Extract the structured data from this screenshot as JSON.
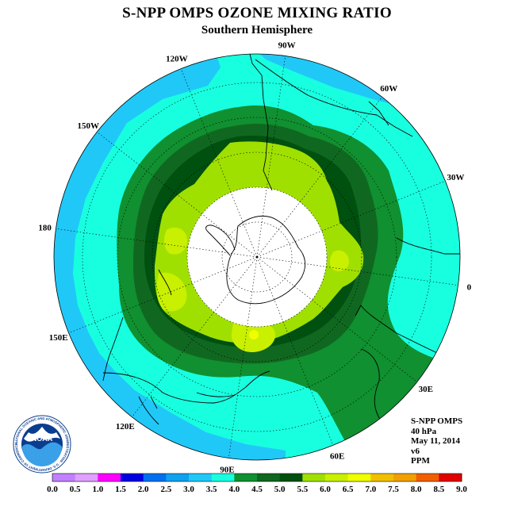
{
  "title": "S-NPP OMPS OZONE MIXING RATIO",
  "subtitle": "Southern Hemisphere",
  "logo_text": "NOAA",
  "logo_ring_text": "NATIONAL OCEANIC AND ATMOSPHERIC ADMINISTRATION · U.S. DEPARTMENT OF COMMERCE",
  "info": {
    "instrument": "S-NPP OMPS",
    "level": "40 hPa",
    "date": "May 11, 2014",
    "version": "v6",
    "units": "PPM"
  },
  "longitude_labels": [
    {
      "text": "90W",
      "angle": -90
    },
    {
      "text": "60W",
      "angle": -60
    },
    {
      "text": "30W",
      "angle": -30
    },
    {
      "text": "0",
      "angle": 0
    },
    {
      "text": "30E",
      "angle": 30
    },
    {
      "text": "60E",
      "angle": 60
    },
    {
      "text": "90E",
      "angle": 90
    },
    {
      "text": "120E",
      "angle": 120
    },
    {
      "text": "150E",
      "angle": 150
    },
    {
      "text": "180",
      "angle": 180
    },
    {
      "text": "150W",
      "angle": 210
    },
    {
      "text": "120W",
      "angle": 240
    }
  ],
  "colorbar": {
    "ticks": [
      "0.0",
      "0.5",
      "1.0",
      "1.5",
      "2.0",
      "2.5",
      "3.0",
      "3.5",
      "4.0",
      "4.5",
      "5.0",
      "5.5",
      "6.0",
      "6.5",
      "7.0",
      "7.5",
      "8.0",
      "8.5",
      "9.0"
    ],
    "colors": [
      "#c080ff",
      "#e0a0ff",
      "#ff00ff",
      "#0000e0",
      "#0070f0",
      "#10a0f0",
      "#20c8f8",
      "#18ffe0",
      "#109030",
      "#106820",
      "#005010",
      "#a0e000",
      "#c8f000",
      "#f0ff00",
      "#f0c000",
      "#f0a000",
      "#f06000",
      "#e00000",
      "#806040"
    ]
  },
  "map_colors": {
    "level_3_0": "#20c8f8",
    "level_3_5": "#18ffe0",
    "level_4_0": "#109030",
    "level_4_5": "#106820",
    "level_5_0": "#005010",
    "level_5_5": "#a0e000",
    "level_6_0": "#c8f000",
    "level_6_5": "#f0ff00",
    "no_data": "#ffffff"
  }
}
